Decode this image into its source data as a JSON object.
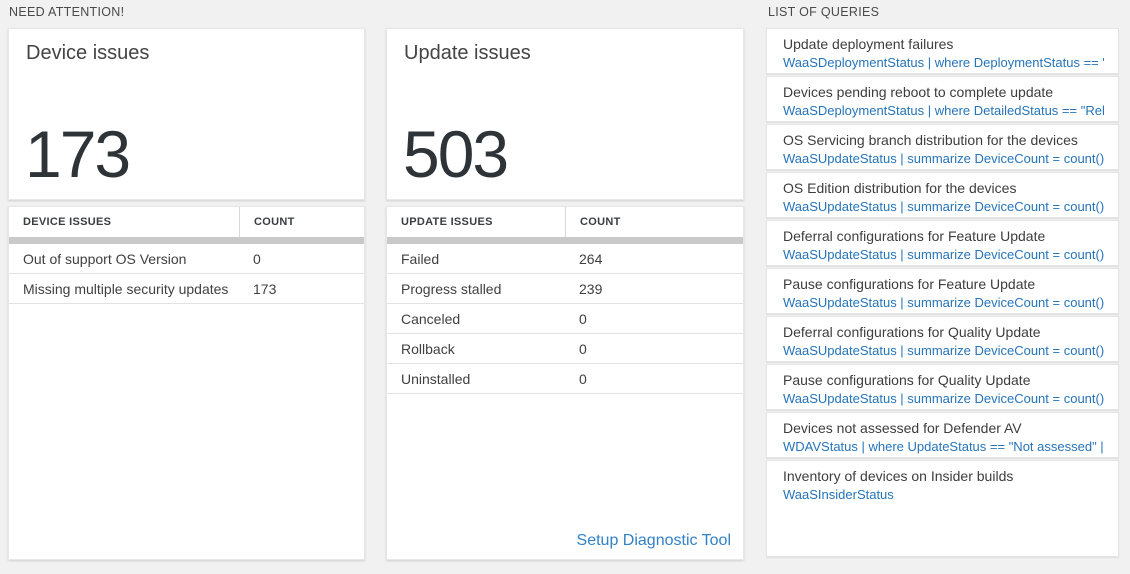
{
  "need_attention": {
    "section_label": "NEED ATTENTION!",
    "device_card": {
      "title": "Device issues",
      "count": "173",
      "table": {
        "headers": [
          "DEVICE ISSUES",
          "COUNT"
        ],
        "rows": [
          {
            "label": "Out of support OS Version",
            "count": "0"
          },
          {
            "label": "Missing multiple security updates",
            "count": "173"
          }
        ]
      }
    },
    "update_card": {
      "title": "Update issues",
      "count": "503",
      "table": {
        "headers": [
          "UPDATE ISSUES",
          "COUNT"
        ],
        "rows": [
          {
            "label": "Failed",
            "count": "264"
          },
          {
            "label": "Progress stalled",
            "count": "239"
          },
          {
            "label": "Canceled",
            "count": "0"
          },
          {
            "label": "Rollback",
            "count": "0"
          },
          {
            "label": "Uninstalled",
            "count": "0"
          }
        ]
      },
      "footer_link": "Setup Diagnostic Tool"
    }
  },
  "queries": {
    "section_label": "LIST OF QUERIES",
    "items": [
      {
        "title": "Update deployment failures",
        "query": "WaaSDeploymentStatus | where DeploymentStatus == \"Failed\" |..."
      },
      {
        "title": "Devices pending reboot to complete update",
        "query": "WaaSDeploymentStatus | where DetailedStatus == \"Reboot pend..."
      },
      {
        "title": "OS Servicing branch distribution for the devices",
        "query": "WaaSUpdateStatus | summarize DeviceCount = count() by OSSer..."
      },
      {
        "title": "OS Edition distribution for the devices",
        "query": "WaaSUpdateStatus | summarize DeviceCount = count() by OSEdit..."
      },
      {
        "title": "Deferral configurations for Feature Update",
        "query": "WaaSUpdateStatus | summarize DeviceCount = count() by Featur..."
      },
      {
        "title": "Pause configurations for Feature Update",
        "query": "WaaSUpdateStatus | summarize DeviceCount = count() by Featur..."
      },
      {
        "title": "Deferral configurations for Quality Update",
        "query": "WaaSUpdateStatus | summarize DeviceCount = count() by Qualit..."
      },
      {
        "title": "Pause configurations for Quality Update",
        "query": "WaaSUpdateStatus | summarize DeviceCount = count() by Qualit..."
      },
      {
        "title": "Devices not assessed for Defender AV",
        "query": "WDAVStatus | where UpdateStatus == \"Not assessed\" | render ta..."
      },
      {
        "title": "Inventory of devices on Insider builds",
        "query": "WaaSInsiderStatus"
      }
    ]
  },
  "colors": {
    "page_background": "#f1f1f1",
    "query_link_blue": "#2674b9",
    "footer_link_blue": "#3181c6",
    "big_number_color": "#2e3338"
  }
}
